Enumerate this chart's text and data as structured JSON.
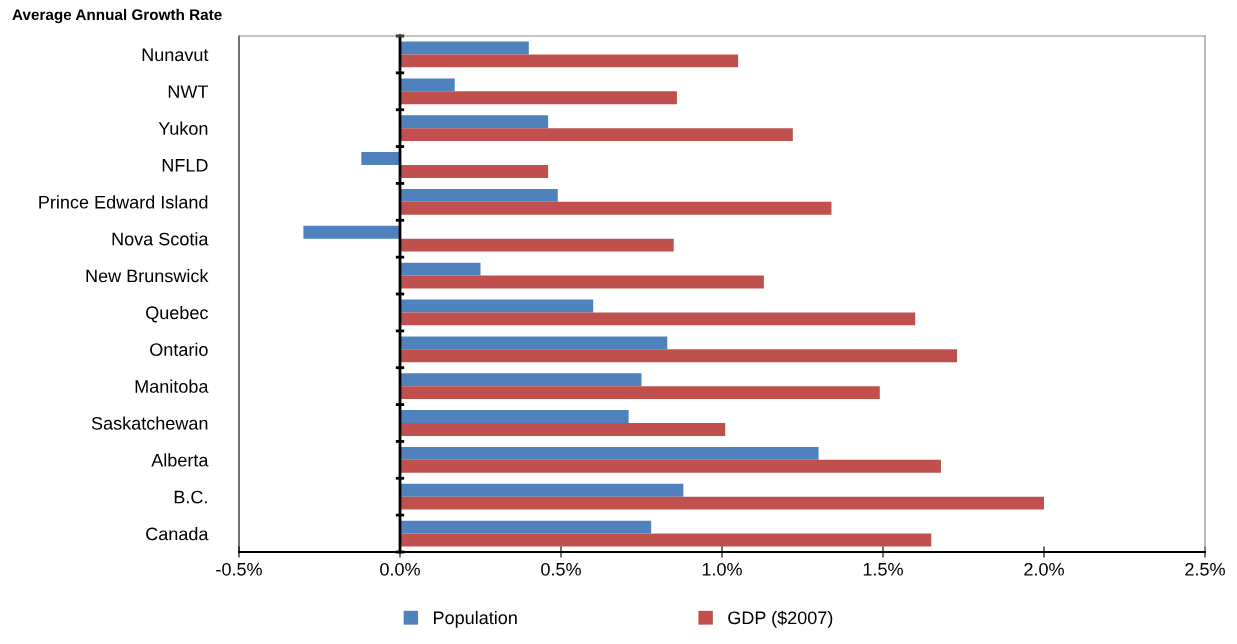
{
  "chart_data": {
    "type": "bar",
    "orientation": "horizontal",
    "title": "Average Annual Growth Rate",
    "categories": [
      "Nunavut",
      "NWT",
      "Yukon",
      "NFLD",
      "Prince Edward Island",
      "Nova Scotia",
      "New Brunswick",
      "Quebec",
      "Ontario",
      "Manitoba",
      "Saskatchewan",
      "Alberta",
      "B.C.",
      "Canada"
    ],
    "series": [
      {
        "name": "Population",
        "color": "#4f81bd",
        "values": [
          0.4,
          0.17,
          0.46,
          -0.12,
          0.49,
          -0.3,
          0.25,
          0.6,
          0.83,
          0.75,
          0.71,
          1.3,
          0.88,
          0.78
        ]
      },
      {
        "name": "GDP ($2007)",
        "color": "#c0504d",
        "values": [
          1.05,
          0.86,
          1.22,
          0.46,
          1.34,
          0.85,
          1.13,
          1.6,
          1.73,
          1.49,
          1.01,
          1.68,
          2.0,
          1.65
        ]
      }
    ],
    "xlim": [
      -0.5,
      2.5
    ],
    "xticks": [
      {
        "value": -0.5,
        "label": "-0.5%"
      },
      {
        "value": 0,
        "label": "0.0%"
      },
      {
        "value": 0.5,
        "label": "0.5%"
      },
      {
        "value": 1.0,
        "label": "1.0%"
      },
      {
        "value": 1.5,
        "label": "1.5%"
      },
      {
        "value": 2.0,
        "label": "2.0%"
      },
      {
        "value": 2.5,
        "label": "2.5%"
      }
    ],
    "legend": "bottom"
  }
}
